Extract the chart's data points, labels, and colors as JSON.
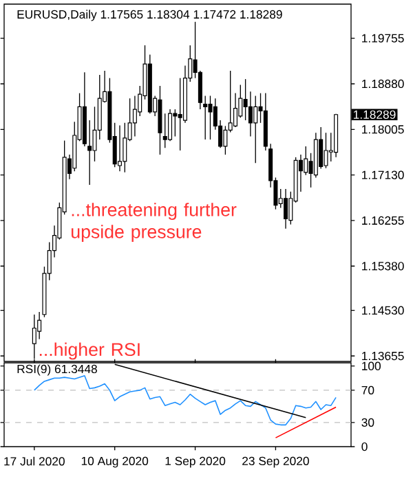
{
  "chart_data": [
    {
      "type": "candlestick",
      "title": "EURUSD,Daily 1.17565 1.18304 1.17472 1.18289",
      "color": "#000000",
      "tick_labels": "y",
      "categories": [
        null,
        null,
        null,
        null,
        null,
        null,
        null,
        null,
        null,
        null,
        null,
        null,
        null,
        null,
        null,
        null,
        null,
        null,
        null,
        null,
        null,
        null,
        null,
        null,
        null,
        null,
        null,
        null,
        null,
        null,
        null,
        null,
        null,
        null,
        null,
        null,
        null,
        null,
        null,
        null,
        null,
        null,
        null,
        null,
        null,
        null,
        null,
        null,
        null,
        null,
        null,
        null,
        null,
        null,
        null,
        null,
        null,
        null,
        null,
        null,
        null
      ],
      "ohlc": [
        [
          1.1389,
          1.1445,
          1.136,
          1.1419
        ],
        [
          1.1413,
          1.145,
          1.1398,
          1.1434
        ],
        [
          1.1445,
          1.1537,
          1.144,
          1.1524
        ],
        [
          1.1524,
          1.1584,
          1.1511,
          1.1568
        ],
        [
          1.1568,
          1.1616,
          1.1555,
          1.1597
        ],
        [
          1.1592,
          1.166,
          1.1589,
          1.165
        ],
        [
          1.1642,
          1.1779,
          1.1637,
          1.1747
        ],
        [
          1.1744,
          1.1752,
          1.1705,
          1.1716
        ],
        [
          1.1726,
          1.1815,
          1.172,
          1.1789
        ],
        [
          1.1781,
          1.187,
          1.1778,
          1.1844
        ],
        [
          1.1844,
          1.191,
          1.1768,
          1.1773
        ],
        [
          1.1768,
          1.1818,
          1.1694,
          1.176
        ],
        [
          1.176,
          1.1844,
          1.1739,
          1.1799
        ],
        [
          1.1799,
          1.1905,
          1.1781,
          1.186
        ],
        [
          1.1854,
          1.1913,
          1.1852,
          1.1873
        ],
        [
          1.1873,
          1.1899,
          1.1775,
          1.1781
        ],
        [
          1.1787,
          1.1813,
          1.1728,
          1.1734
        ],
        [
          1.1731,
          1.1808,
          1.172,
          1.1739
        ],
        [
          1.1739,
          1.1813,
          1.1718,
          1.1784
        ],
        [
          1.1781,
          1.186,
          1.1778,
          1.1813
        ],
        [
          1.1813,
          1.1865,
          1.1787,
          1.1839
        ],
        [
          1.1834,
          1.1884,
          1.1826,
          1.1868
        ],
        [
          1.1865,
          1.1962,
          1.1858,
          1.1926
        ],
        [
          1.1926,
          1.1944,
          1.1831,
          1.1834
        ],
        [
          1.1834,
          1.1865,
          1.1826,
          1.186
        ],
        [
          1.1857,
          1.1884,
          1.1752,
          1.1794
        ],
        [
          1.1787,
          1.1831,
          1.1765,
          1.1781
        ],
        [
          1.1781,
          1.1839,
          1.1778,
          1.1831
        ],
        [
          1.1831,
          1.1839,
          1.1787,
          1.1826
        ],
        [
          1.1829,
          1.1899,
          1.176,
          1.1823
        ],
        [
          1.1818,
          1.1923,
          1.1813,
          1.1899
        ],
        [
          1.1899,
          1.1962,
          1.1892,
          1.1936
        ],
        [
          1.1934,
          1.2007,
          1.1899,
          1.191
        ],
        [
          1.191,
          1.1913,
          1.1839,
          1.1852
        ],
        [
          1.1849,
          1.1865,
          1.1781,
          1.1844
        ],
        [
          1.1849,
          1.1865,
          1.1781,
          1.1834
        ],
        [
          1.1844,
          1.186,
          1.18,
          1.1807
        ],
        [
          1.1807,
          1.1818,
          1.1765,
          1.1768
        ],
        [
          1.1768,
          1.1807,
          1.1752,
          1.1799
        ],
        [
          1.1799,
          1.1913,
          1.1795,
          1.1813
        ],
        [
          1.1807,
          1.187,
          1.1805,
          1.1841
        ],
        [
          1.1826,
          1.1886,
          1.1823,
          1.186
        ],
        [
          1.1858,
          1.1897,
          1.1818,
          1.1844
        ],
        [
          1.1844,
          1.1873,
          1.1787,
          1.1813
        ],
        [
          1.1813,
          1.1865,
          1.1736,
          1.1844
        ],
        [
          1.1844,
          1.187,
          1.1813,
          1.1836
        ],
        [
          1.1836,
          1.187,
          1.176,
          1.1768
        ],
        [
          1.1763,
          1.1773,
          1.1689,
          1.1702
        ],
        [
          1.1702,
          1.1708,
          1.1647,
          1.1655
        ],
        [
          1.1658,
          1.1686,
          1.165,
          1.1668
        ],
        [
          1.1668,
          1.1686,
          1.161,
          1.1629
        ],
        [
          1.1626,
          1.1681,
          1.1618,
          1.1668
        ],
        [
          1.1663,
          1.1747,
          1.166,
          1.1741
        ],
        [
          1.1741,
          1.1752,
          1.1681,
          1.1721
        ],
        [
          1.1718,
          1.1768,
          1.1713,
          1.1744
        ],
        [
          1.1739,
          1.1755,
          1.1689,
          1.1716
        ],
        [
          1.1713,
          1.1794,
          1.1708,
          1.1781
        ],
        [
          1.1781,
          1.1805,
          1.1725,
          1.1729
        ],
        [
          1.1731,
          1.1794,
          1.1726,
          1.176
        ],
        [
          1.1757,
          1.1794,
          1.1739,
          1.176
        ],
        [
          1.17565,
          1.18304,
          1.17472,
          1.18289
        ]
      ],
      "ylim": [
        1.1355,
        1.2041
      ],
      "yticks": [
        1.19755,
        {
          "value": 1.1888,
          "label": "1.18880"
        },
        1.18005,
        {
          "value": 1.1713,
          "label": "1.17130"
        },
        1.16255,
        {
          "value": 1.1538,
          "label": "1.15380"
        },
        {
          "value": 1.1453,
          "label": "1.14530"
        },
        1.13655
      ],
      "annotations": [
        "...threatening further upside pressure",
        "...higher RSI",
        "1.18289"
      ]
    },
    {
      "type": "line",
      "title": "RSI(9) 61.3448",
      "categories": [
        "17 Jul 2020",
        null,
        null,
        null,
        null,
        null,
        null,
        null,
        null,
        null,
        null,
        null,
        null,
        null,
        null,
        null,
        "10 Aug 2020",
        null,
        null,
        null,
        null,
        null,
        null,
        null,
        null,
        null,
        null,
        null,
        null,
        null,
        null,
        null,
        "1 Sep 2020",
        null,
        null,
        null,
        null,
        null,
        null,
        null,
        null,
        null,
        null,
        null,
        null,
        null,
        null,
        null,
        "23 Sep 2020",
        null,
        null,
        null,
        null,
        null,
        null,
        null,
        null,
        null,
        null,
        null,
        null
      ],
      "series": [
        {
          "color": "#1e90ff",
          "values": [
            70,
            76,
            81,
            83,
            85,
            85,
            86,
            85,
            84,
            86,
            88,
            72,
            73,
            75,
            78,
            70,
            57,
            62,
            65,
            68,
            69,
            70,
            73,
            59,
            61,
            62,
            51,
            53,
            55,
            52,
            58,
            65,
            60,
            56,
            52,
            55,
            57,
            40,
            45,
            48,
            53,
            57,
            51,
            50,
            56,
            52,
            48,
            33,
            28,
            27,
            27,
            35,
            51,
            50,
            48,
            49,
            56,
            46,
            52,
            51,
            61
          ]
        },
        {
          "color": "#000000",
          "values": [
            null,
            null,
            null,
            null,
            null,
            null,
            null,
            null,
            null,
            null,
            null,
            null,
            null,
            null,
            null,
            null,
            102,
            null,
            null,
            null,
            null,
            null,
            null,
            null,
            null,
            null,
            null,
            null,
            null,
            null,
            null,
            null,
            null,
            null,
            null,
            null,
            null,
            null,
            null,
            null,
            null,
            null,
            null,
            null,
            null,
            null,
            null,
            null,
            null,
            null,
            null,
            null,
            null,
            null,
            36,
            null,
            null,
            null,
            null,
            null,
            null
          ]
        },
        {
          "color": "#ff0000",
          "values": [
            null,
            null,
            null,
            null,
            null,
            null,
            null,
            null,
            null,
            null,
            null,
            null,
            null,
            null,
            null,
            null,
            null,
            null,
            null,
            null,
            null,
            null,
            null,
            null,
            null,
            null,
            null,
            null,
            null,
            null,
            null,
            null,
            null,
            null,
            null,
            null,
            null,
            null,
            null,
            null,
            null,
            null,
            null,
            null,
            null,
            null,
            null,
            null,
            11,
            null,
            null,
            null,
            null,
            null,
            null,
            null,
            null,
            null,
            null,
            null,
            49
          ]
        }
      ],
      "ylim": [
        0,
        104
      ],
      "yticks": [
        100,
        70,
        30,
        0
      ],
      "ref_lines": [
        {
          "axis": "y",
          "value": 70,
          "color": "#c0c0c0",
          "line_style": "dashed"
        },
        {
          "axis": "y",
          "value": 30,
          "color": "#c0c0c0",
          "line_style": "dashed"
        }
      ]
    }
  ]
}
